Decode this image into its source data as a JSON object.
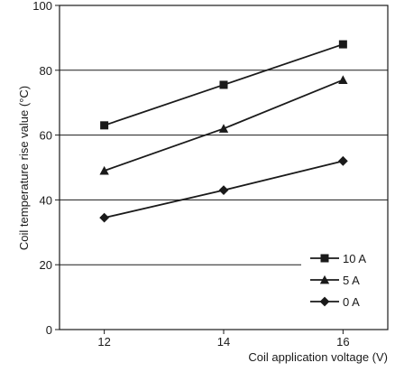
{
  "chart_data": {
    "type": "line",
    "title": "",
    "xlabel": "Coil application voltage (V)",
    "ylabel": "Coil temperature rise value (°C)",
    "x": [
      12,
      14,
      16
    ],
    "xlim": [
      11.25,
      16.75
    ],
    "ylim": [
      0,
      100
    ],
    "xticks": [
      12,
      14,
      16
    ],
    "yticks": [
      0,
      20,
      40,
      60,
      80,
      100
    ],
    "grid": "horizontal",
    "legend_position": "bottom-right",
    "series": [
      {
        "name": "10 A",
        "marker": "square",
        "values": [
          63,
          75.5,
          88
        ]
      },
      {
        "name": "5 A",
        "marker": "triangle",
        "values": [
          49,
          62,
          77
        ]
      },
      {
        "name": "0 A",
        "marker": "diamond",
        "values": [
          34.5,
          43,
          52
        ]
      }
    ],
    "colors": {
      "line": "#1a1a1a",
      "grid": "#1a1a1a",
      "background": "#ffffff"
    }
  }
}
